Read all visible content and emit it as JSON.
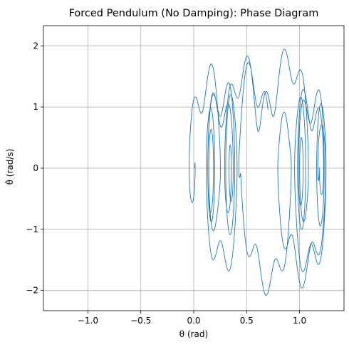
{
  "chart_data": {
    "type": "line",
    "title": "Forced Pendulum (No Damping): Phase Diagram",
    "xlabel": "θ (rad)",
    "ylabel": "θ̇ (rad/s)",
    "xlim": [
      -1.42,
      1.42
    ],
    "ylim": [
      -2.33,
      2.33
    ],
    "xticks": [
      -1.0,
      -0.5,
      0.0,
      0.5,
      1.0
    ],
    "xtick_labels": [
      "−1.0",
      "−0.5",
      "0.0",
      "0.5",
      "1.0"
    ],
    "yticks": [
      -2,
      -1,
      0,
      1,
      2
    ],
    "ytick_labels": [
      "−2",
      "−1",
      "0",
      "1",
      "2"
    ],
    "grid": true,
    "line_color": "#1f77b4",
    "trajectory": {
      "start_theta": 0.35,
      "start_omega": 0.0,
      "theta_amplitude_max": 1.25,
      "omega_amplitude_max": 2.08
    }
  }
}
